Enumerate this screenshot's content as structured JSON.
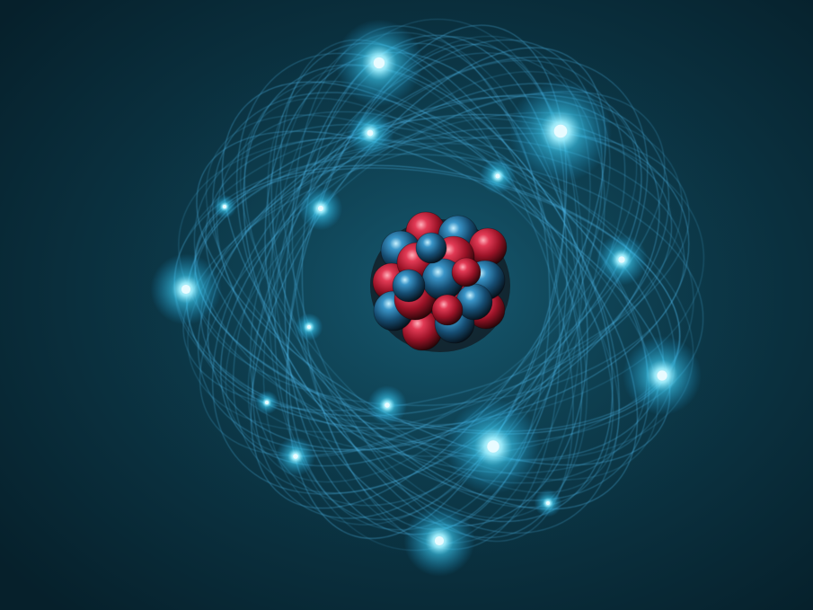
{
  "scene": {
    "subject": "atom-illustration",
    "colors": {
      "background_center": "#10485a",
      "background_edge": "#06202b",
      "orbit_line": "#56c8ff",
      "electron_glow": "#3fd6ff",
      "electron_core": "#e8fbff",
      "proton": "#c81f3a",
      "proton_highlight": "#ff8a9a",
      "neutron": "#1f6e9e",
      "neutron_highlight": "#9fe2ff",
      "particle_shadow": "#120608"
    },
    "icons": {
      "nucleus": "nucleus-icon",
      "electron": "electron-icon",
      "orbit": "orbit-icon"
    },
    "counts_visible": {
      "nucleons": 20,
      "electrons": 16
    }
  }
}
